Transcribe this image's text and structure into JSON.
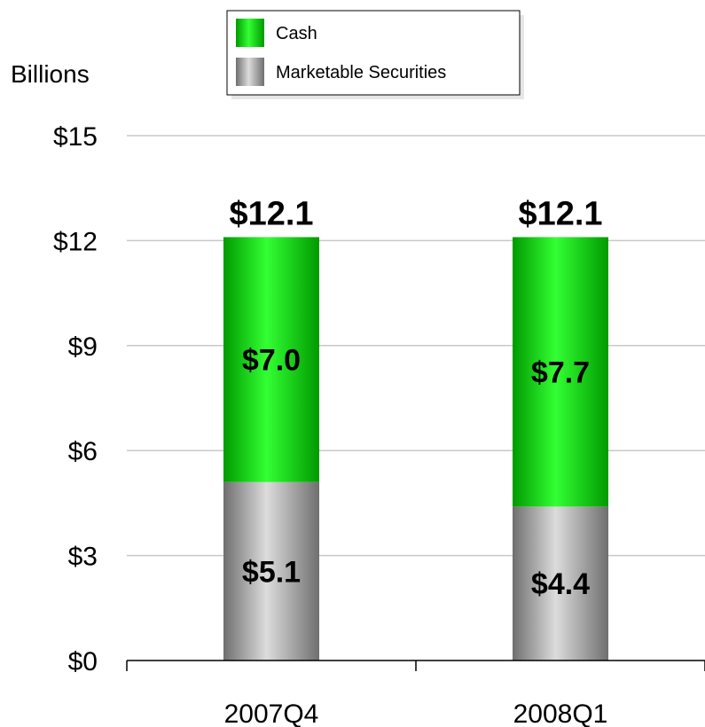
{
  "chart_data": {
    "type": "bar",
    "stacked": true,
    "categories": [
      "2007Q4",
      "2008Q1"
    ],
    "series": [
      {
        "name": "Marketable Securities",
        "values": [
          5.1,
          4.4
        ],
        "labels": [
          "$5.1",
          "$4.4"
        ],
        "color": "#a6a6a6"
      },
      {
        "name": "Cash",
        "values": [
          7.0,
          7.7
        ],
        "labels": [
          "$7.0",
          "$7.7"
        ],
        "color": "#00d400"
      }
    ],
    "totals": [
      12.1,
      12.1
    ],
    "total_labels": [
      "$12.1",
      "$12.1"
    ],
    "ylabel": "Billions",
    "ylim": [
      0,
      15
    ],
    "yticks": [
      0,
      3,
      6,
      9,
      12,
      15
    ],
    "ytick_labels": [
      "$0",
      "$3",
      "$6",
      "$9",
      "$12",
      "$15"
    ],
    "grid": true,
    "legend_position": "top-center"
  }
}
